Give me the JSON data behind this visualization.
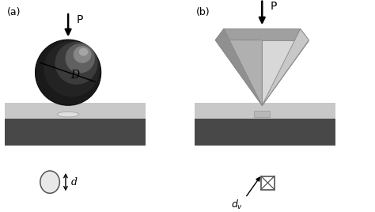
{
  "bg_color": "#ffffff",
  "panel_a_label": "(a)",
  "panel_b_label": "(b)",
  "load_label": "P",
  "surface_top_color": "#c8c8c8",
  "surface_front_color": "#888888",
  "surface_bottom_dark": "#484848",
  "D_label": "D",
  "d_label": "d",
  "dv_label": "d_v"
}
